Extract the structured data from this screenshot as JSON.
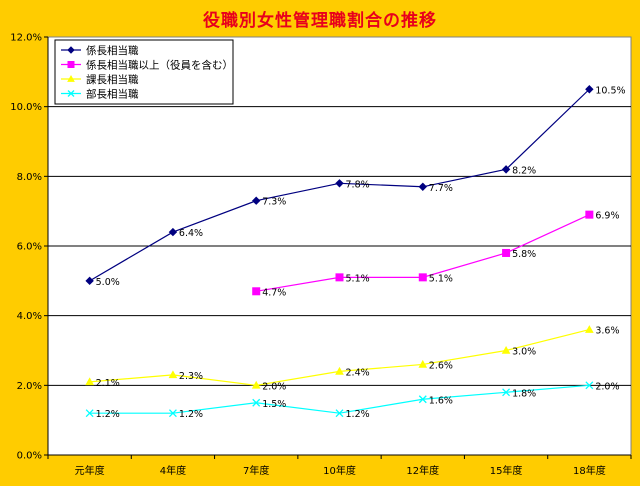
{
  "chart_data": {
    "type": "line",
    "title": "役職別女性管理職割合の推移",
    "categories": [
      "元年度",
      "4年度",
      "7年度",
      "10年度",
      "12年度",
      "15年度",
      "18年度"
    ],
    "ylim": [
      0,
      12
    ],
    "yticks": [
      "0.0%",
      "2.0%",
      "4.0%",
      "6.0%",
      "8.0%",
      "10.0%",
      "12.0%"
    ],
    "ytick_values": [
      0,
      2,
      4,
      6,
      8,
      10,
      12
    ],
    "grid": true,
    "legend_position": "top-left",
    "series": [
      {
        "name": "係長相当職",
        "color": "#000080",
        "marker": "diamond",
        "values": [
          5.0,
          6.4,
          7.3,
          7.8,
          7.7,
          8.2,
          10.5
        ],
        "labels": [
          "5.0%",
          "6.4%",
          "7.3%",
          "7.8%",
          "7.7%",
          "8.2%",
          "10.5%"
        ]
      },
      {
        "name": "係長相当職以上（役員を含む）",
        "color": "#FF00FF",
        "marker": "square",
        "values": [
          null,
          null,
          4.7,
          5.1,
          5.1,
          5.8,
          6.9
        ],
        "labels": [
          null,
          null,
          "4.7%",
          "5.1%",
          "5.1%",
          "5.8%",
          "6.9%"
        ]
      },
      {
        "name": "課長相当職",
        "color": "#FFFF00",
        "marker": "triangle",
        "values": [
          2.1,
          2.3,
          2.0,
          2.4,
          2.6,
          3.0,
          3.6
        ],
        "labels": [
          "2.1%",
          "2.3%",
          "2.0%",
          "2.4%",
          "2.6%",
          "3.0%",
          "3.6%"
        ]
      },
      {
        "name": "部長相当職",
        "color": "#00FFFF",
        "marker": "x",
        "values": [
          1.2,
          1.2,
          1.5,
          1.2,
          1.6,
          1.8,
          2.0
        ],
        "labels": [
          "1.2%",
          "1.2%",
          "1.5%",
          "1.2%",
          "1.6%",
          "1.8%",
          "2.0%"
        ]
      }
    ]
  }
}
